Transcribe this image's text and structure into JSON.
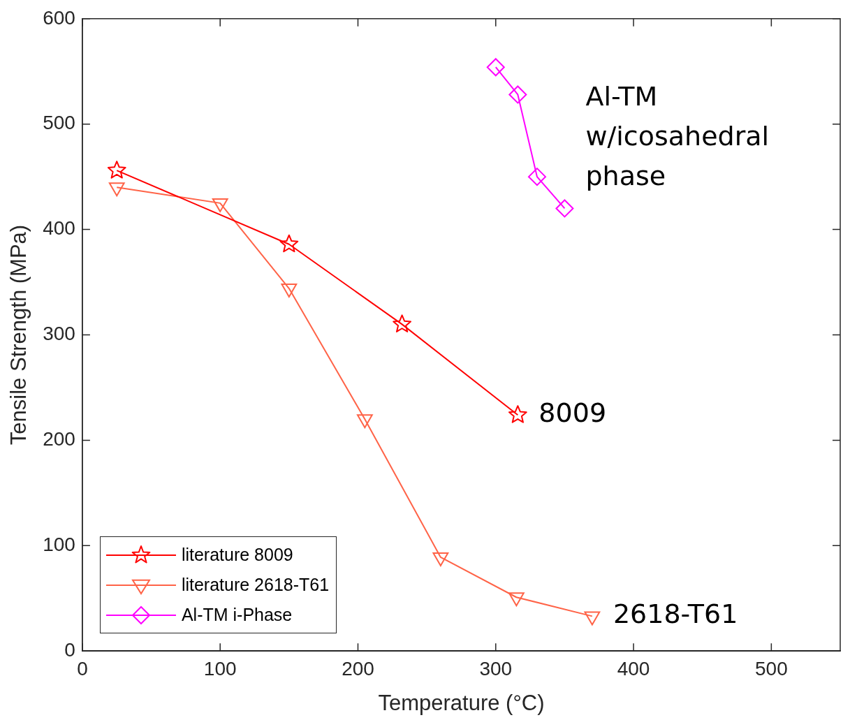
{
  "chart_data": {
    "type": "line",
    "xlabel": "Temperature (°C)",
    "ylabel": "Tensile Strength (MPa)",
    "xlim": [
      0,
      550
    ],
    "xticks": [
      0,
      100,
      200,
      300,
      400,
      500
    ],
    "ylim": [
      0,
      600
    ],
    "yticks": [
      0,
      100,
      200,
      300,
      400,
      500,
      600
    ],
    "grid": false,
    "legend": "bottom left",
    "series": [
      {
        "name": "literature 8009",
        "color": "#ff0000",
        "marker": "star",
        "x": [
          25,
          150,
          232,
          316
        ],
        "values": [
          456,
          386,
          310,
          224
        ]
      },
      {
        "name": "literature 2618-T61",
        "color": "#ff6347",
        "marker": "triangle",
        "x": [
          25,
          100,
          150,
          205,
          260,
          315,
          370
        ],
        "values": [
          440,
          425,
          344,
          220,
          89,
          51,
          33
        ]
      },
      {
        "name": "Al-TM i-Phase",
        "color": "#ff00ff",
        "marker": "diamond",
        "x": [
          300,
          316,
          330,
          350
        ],
        "values": [
          554,
          528,
          450,
          420
        ]
      }
    ],
    "annotations": [
      {
        "text": "Al-TM\nw/icosahedral\nphase",
        "x": 350,
        "y": 420
      },
      {
        "text": "8009",
        "x": 316,
        "y": 224
      },
      {
        "text": "2618-T61",
        "x": 370,
        "y": 33
      }
    ]
  }
}
